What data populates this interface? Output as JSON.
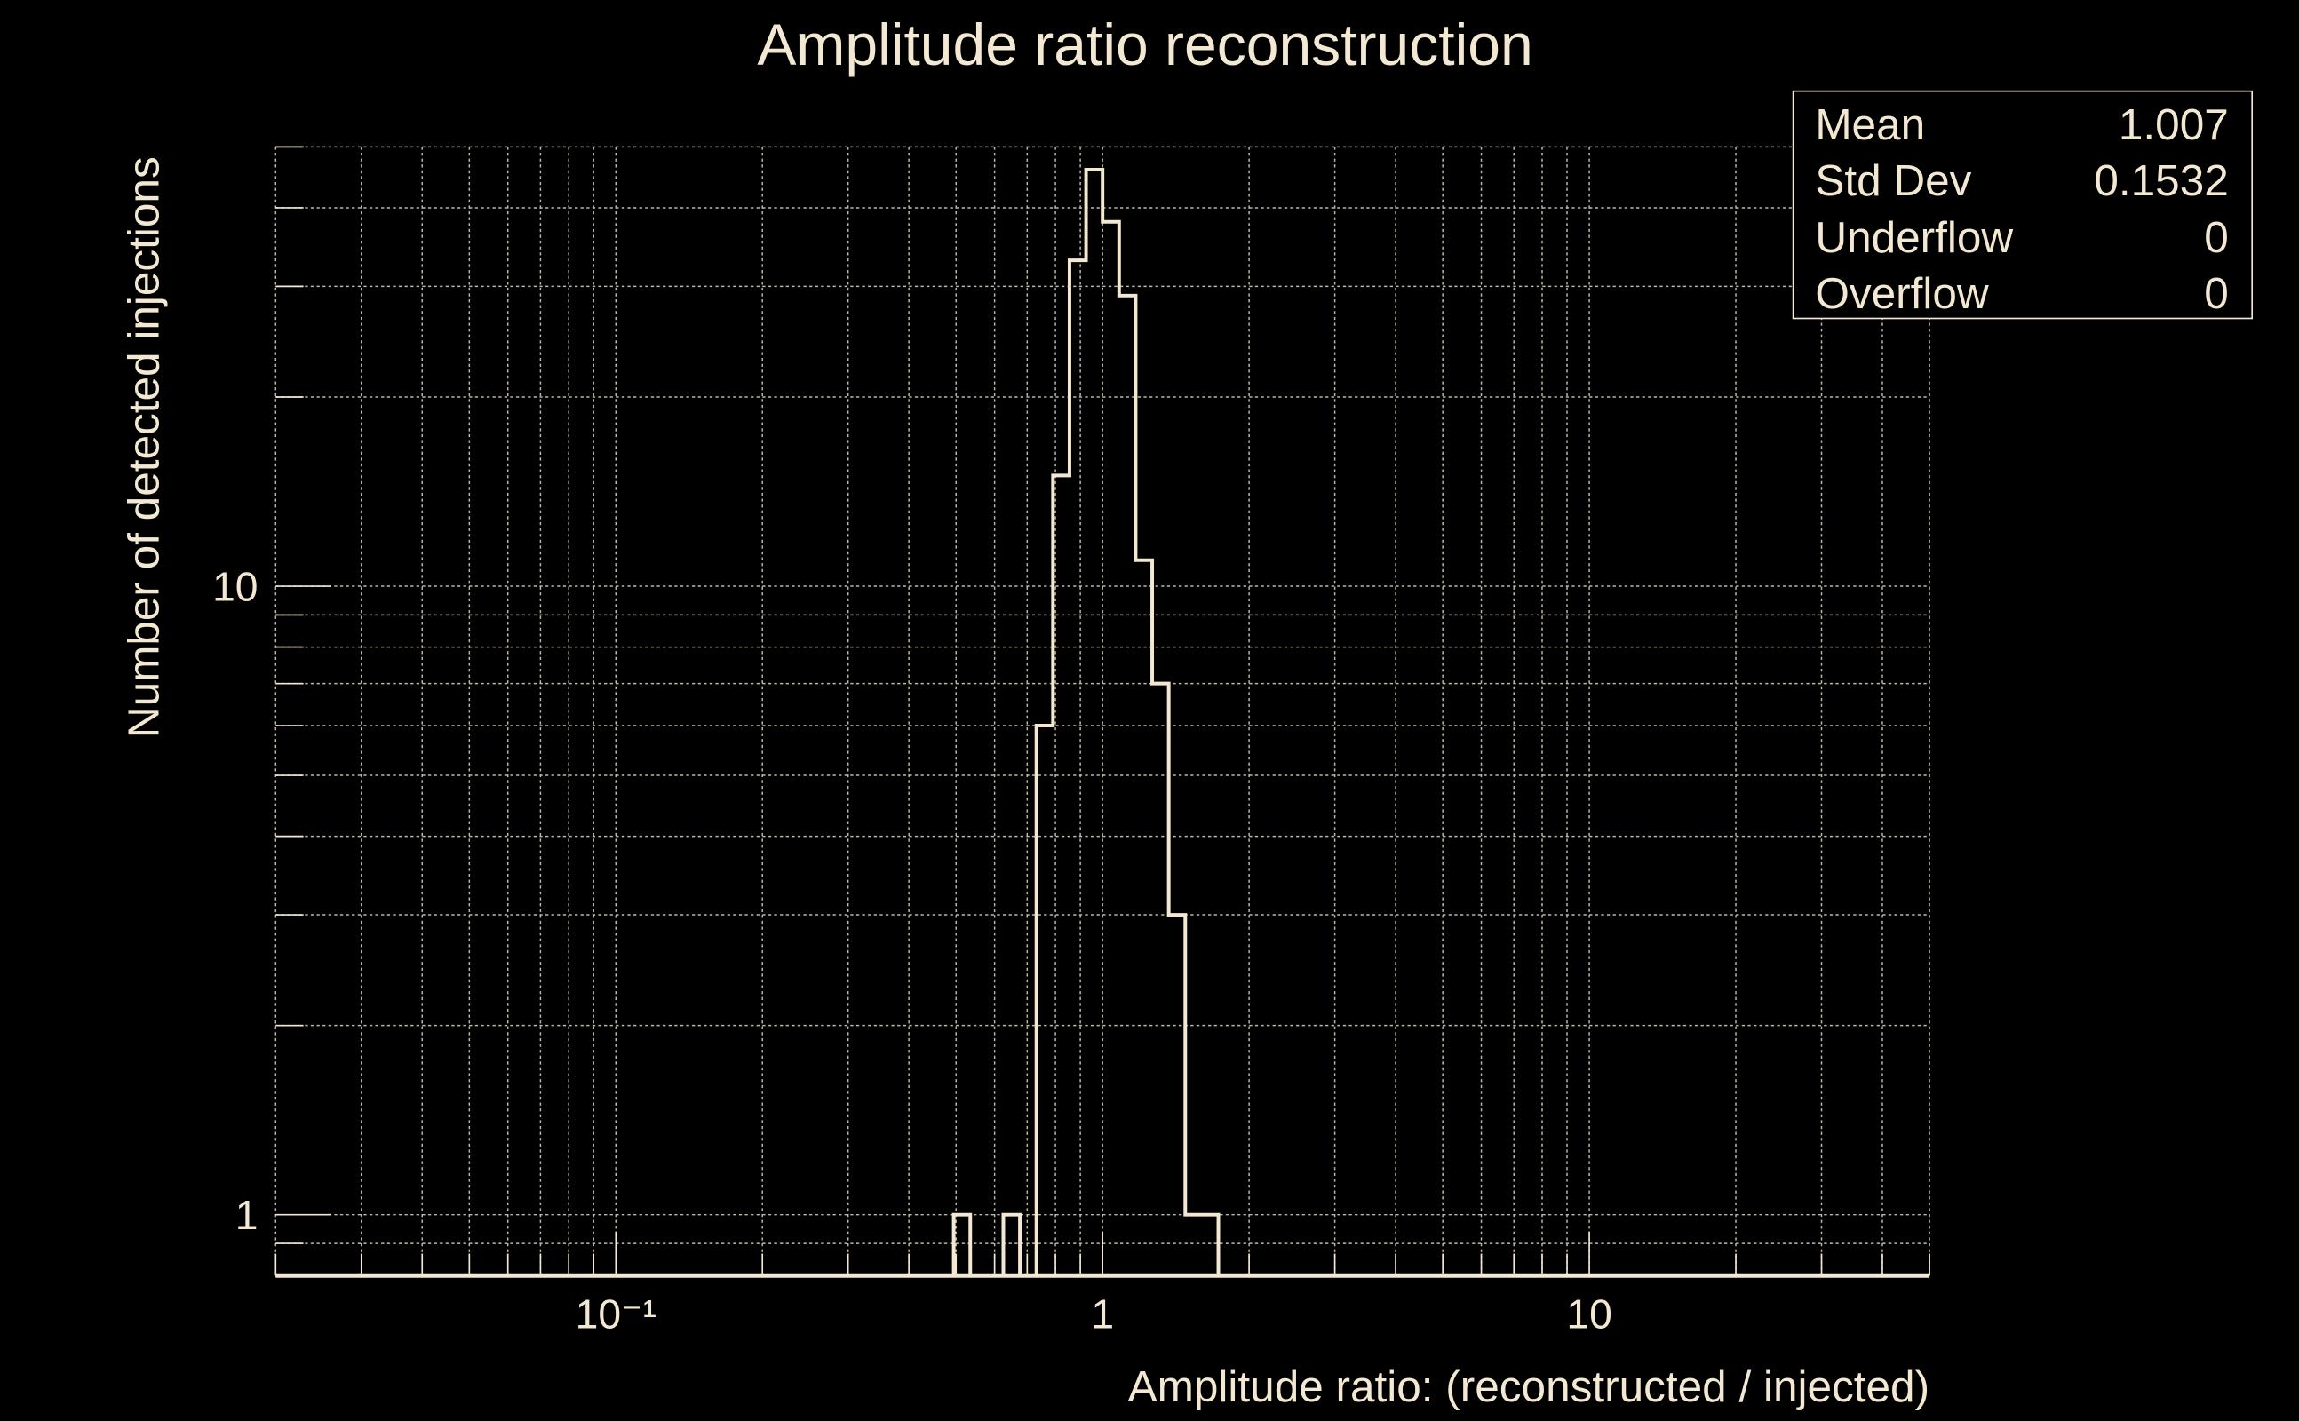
{
  "chart_data": {
    "type": "bar",
    "histogram": true,
    "title": "Amplitude ratio reconstruction",
    "xlabel": "Amplitude ratio: (reconstructed / injected)",
    "ylabel": "Number of detected injections",
    "xscale": "log",
    "yscale": "log",
    "xlim": [
      0.02,
      50
    ],
    "ylim": [
      0.8,
      50
    ],
    "n_bins": 100,
    "x_tick_labels": [
      {
        "value": 0.1,
        "label": "10⁻¹"
      },
      {
        "value": 1,
        "label": "1"
      },
      {
        "value": 10,
        "label": "10"
      }
    ],
    "y_tick_labels": [
      {
        "value": 1,
        "label": "1"
      },
      {
        "value": 10,
        "label": "10"
      }
    ],
    "bins": [
      {
        "index": 41,
        "count": 1
      },
      {
        "index": 44,
        "count": 1
      },
      {
        "index": 46,
        "count": 6
      },
      {
        "index": 47,
        "count": 15
      },
      {
        "index": 48,
        "count": 33
      },
      {
        "index": 49,
        "count": 46
      },
      {
        "index": 50,
        "count": 38
      },
      {
        "index": 51,
        "count": 29
      },
      {
        "index": 52,
        "count": 11
      },
      {
        "index": 53,
        "count": 7
      },
      {
        "index": 54,
        "count": 3
      },
      {
        "index": 55,
        "count": 1
      },
      {
        "index": 56,
        "count": 1
      }
    ],
    "grid": true,
    "legend": "none",
    "stats_box": {
      "placement": "top-right",
      "rows": [
        {
          "label": "Mean",
          "value": "1.007"
        },
        {
          "label": "Std Dev",
          "value": "0.1532"
        },
        {
          "label": "Underflow",
          "value": "0"
        },
        {
          "label": "Overflow",
          "value": "0"
        }
      ]
    },
    "colors": {
      "foreground": "#f3e9d2",
      "background": "#000000"
    }
  }
}
